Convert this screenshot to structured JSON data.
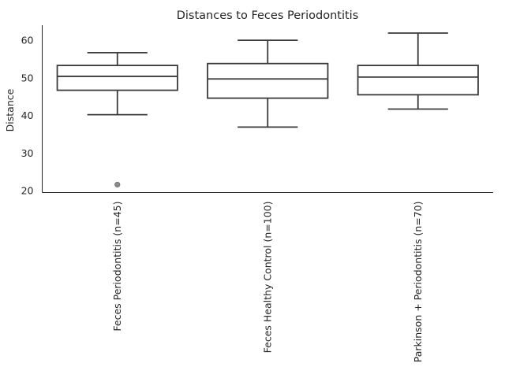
{
  "chart_data": {
    "type": "box",
    "title": "Distances to Feces Periodontitis",
    "xlabel": "",
    "ylabel": "Distance",
    "ylim": [
      19.5,
      64
    ],
    "yticks": [
      20,
      30,
      40,
      50,
      60
    ],
    "grid": false,
    "categories": [
      "Feces Periodontitis (n=45)",
      "Feces Healthy Control (n=100)",
      "Parkinson + Periodontitis (n=70)"
    ],
    "boxes": [
      {
        "category": "Feces Periodontitis (n=45)",
        "whisker_low": 40.2,
        "q1": 46.7,
        "median": 50.4,
        "q3": 53.3,
        "whisker_high": 56.7,
        "outliers": [
          21.6
        ]
      },
      {
        "category": "Feces Healthy Control (n=100)",
        "whisker_low": 36.9,
        "q1": 44.6,
        "median": 49.7,
        "q3": 53.8,
        "whisker_high": 60.0,
        "outliers": []
      },
      {
        "category": "Parkinson + Periodontitis (n=70)",
        "whisker_low": 41.7,
        "q1": 45.5,
        "median": 50.2,
        "q3": 53.3,
        "whisker_high": 61.9,
        "outliers": []
      }
    ]
  }
}
